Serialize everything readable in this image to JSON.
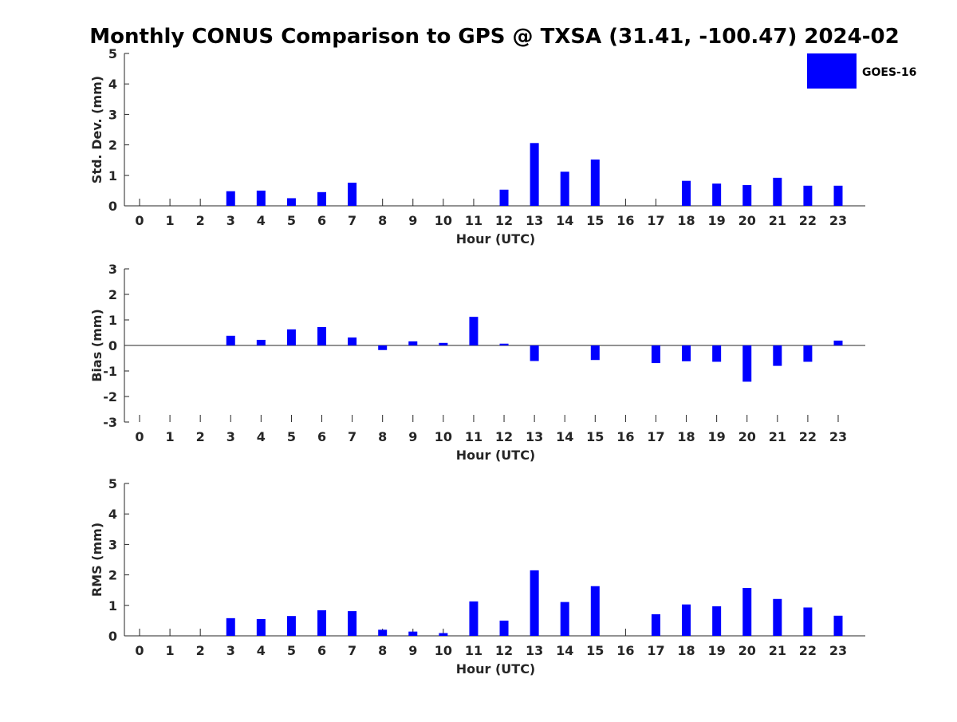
{
  "title": "Monthly CONUS Comparison to GPS @ TXSA (31.41, -100.47) 2024-02",
  "legend": {
    "label": "GOES-16"
  },
  "colors": {
    "bar": "#0000ff",
    "axis": "#262626",
    "text": "#262626"
  },
  "chart_data": [
    {
      "type": "bar",
      "title": "Monthly CONUS Comparison to GPS @ TXSA (31.41, -100.47) 2024-02",
      "xlabel": "Hour (UTC)",
      "ylabel": "Std. Dev. (mm)",
      "ylim": [
        0,
        5
      ],
      "yticks": [
        0,
        1,
        2,
        3,
        4,
        5
      ],
      "categories": [
        "0",
        "1",
        "2",
        "3",
        "4",
        "5",
        "6",
        "7",
        "8",
        "9",
        "10",
        "11",
        "12",
        "13",
        "14",
        "15",
        "16",
        "17",
        "18",
        "19",
        "20",
        "21",
        "22",
        "23"
      ],
      "series": [
        {
          "name": "GOES-16",
          "values": [
            null,
            null,
            null,
            0.48,
            0.5,
            0.25,
            0.45,
            0.76,
            null,
            null,
            null,
            null,
            0.53,
            2.06,
            1.12,
            1.52,
            null,
            null,
            0.82,
            0.73,
            0.68,
            0.92,
            0.66,
            0.66
          ]
        }
      ]
    },
    {
      "type": "bar",
      "xlabel": "Hour (UTC)",
      "ylabel": "Bias (mm)",
      "ylim": [
        -3,
        3
      ],
      "yticks": [
        -3,
        -2,
        -1,
        0,
        1,
        2,
        3
      ],
      "categories": [
        "0",
        "1",
        "2",
        "3",
        "4",
        "5",
        "6",
        "7",
        "8",
        "9",
        "10",
        "11",
        "12",
        "13",
        "14",
        "15",
        "16",
        "17",
        "18",
        "19",
        "20",
        "21",
        "22",
        "23"
      ],
      "series": [
        {
          "name": "GOES-16",
          "values": [
            null,
            null,
            null,
            0.38,
            0.22,
            0.63,
            0.72,
            0.31,
            -0.18,
            0.16,
            0.1,
            1.12,
            0.07,
            -0.61,
            null,
            -0.57,
            null,
            -0.69,
            -0.62,
            -0.64,
            -1.42,
            -0.8,
            -0.64,
            0.19
          ]
        }
      ]
    },
    {
      "type": "bar",
      "xlabel": "Hour (UTC)",
      "ylabel": "RMS (mm)",
      "ylim": [
        0,
        5
      ],
      "yticks": [
        0,
        1,
        2,
        3,
        4,
        5
      ],
      "categories": [
        "0",
        "1",
        "2",
        "3",
        "4",
        "5",
        "6",
        "7",
        "8",
        "9",
        "10",
        "11",
        "12",
        "13",
        "14",
        "15",
        "16",
        "17",
        "18",
        "19",
        "20",
        "21",
        "22",
        "23"
      ],
      "series": [
        {
          "name": "GOES-16",
          "values": [
            null,
            null,
            null,
            0.58,
            0.55,
            0.65,
            0.84,
            0.81,
            0.2,
            0.14,
            0.09,
            1.13,
            0.5,
            2.15,
            1.11,
            1.63,
            null,
            0.71,
            1.03,
            0.97,
            1.57,
            1.21,
            0.93,
            0.66
          ]
        }
      ]
    }
  ]
}
